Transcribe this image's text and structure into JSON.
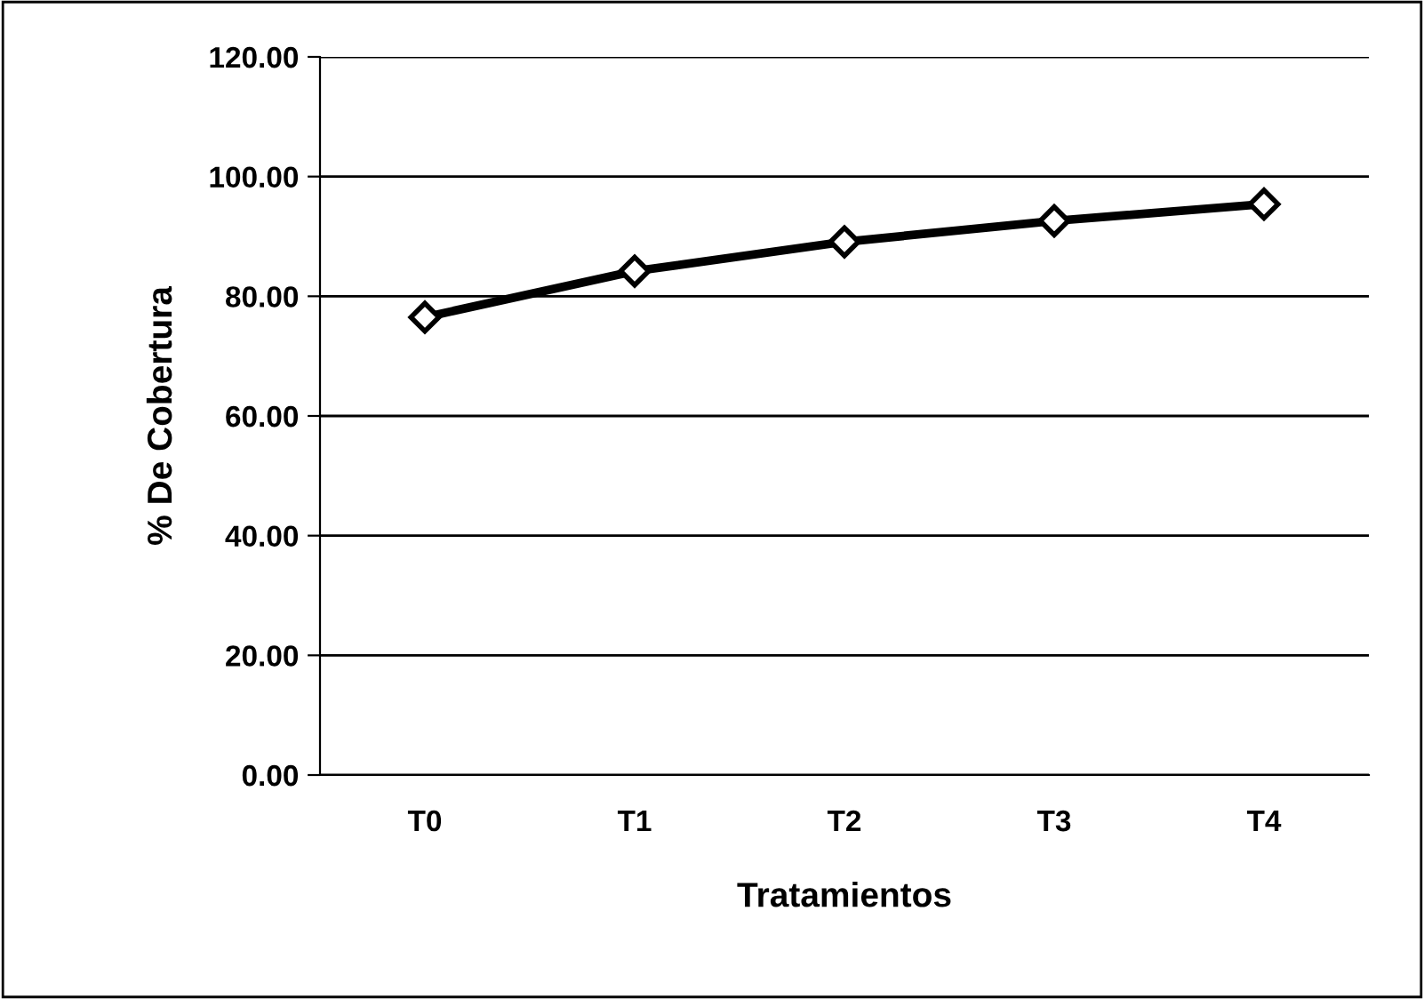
{
  "chart_data": {
    "type": "line",
    "xlabel": "Tratamientos",
    "ylabel": "% De Cobertura",
    "categories": [
      "T0",
      "T1",
      "T2",
      "T3",
      "T4"
    ],
    "series": [
      {
        "color": "#000000",
        "values": [
          76.5,
          84.2,
          89.1,
          92.6,
          95.4
        ]
      }
    ],
    "ylim": [
      0,
      120
    ],
    "yticks": [
      {
        "value": 0,
        "label": "0.00"
      },
      {
        "value": 20,
        "label": "20.00"
      },
      {
        "value": 40,
        "label": "40.00"
      },
      {
        "value": 60,
        "label": "60.00"
      },
      {
        "value": 80,
        "label": "80.00"
      },
      {
        "value": 100,
        "label": "100.00"
      },
      {
        "value": 120,
        "label": "120.00"
      }
    ],
    "grid": "y",
    "marker": "diamond",
    "line_style": "solid"
  }
}
